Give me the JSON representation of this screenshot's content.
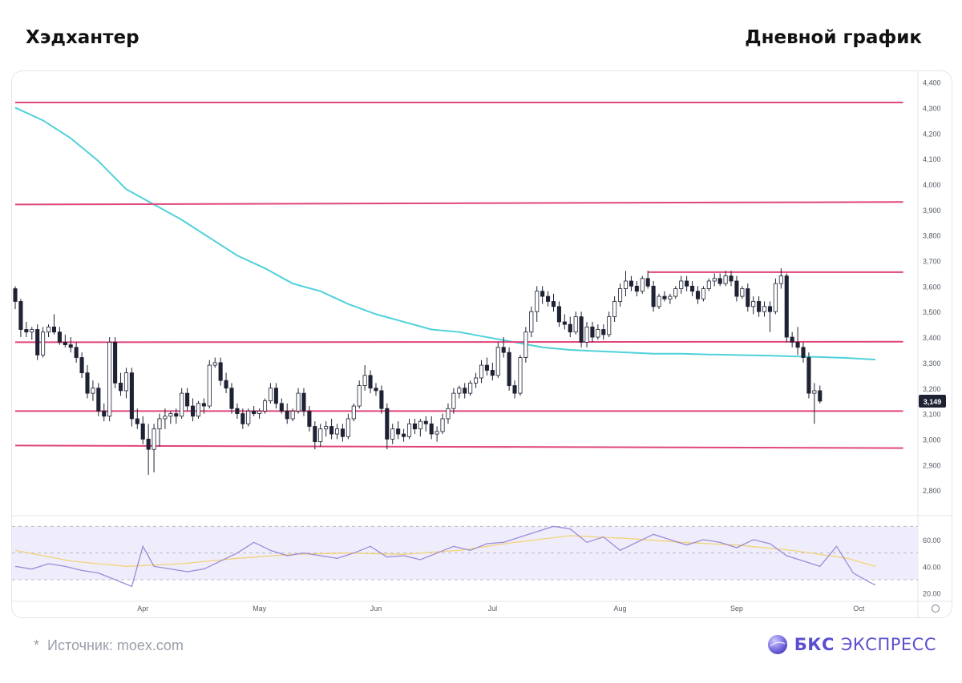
{
  "header": {
    "title_left": "Хэдхантер",
    "title_right": "Дневной график"
  },
  "footer": {
    "source_mark": "*",
    "source_text": "Источник: moex.com",
    "brand_bold": "БКС",
    "brand_thin": "ЭКСПРЕСС"
  },
  "colors": {
    "up_candle": "#ffffff",
    "down_candle": "#1e2233",
    "level_line": "#e0457b",
    "ma_line": "#4fd1d9",
    "rsi_line": "#9b8bd8",
    "rsi_ma_line": "#f2d27a",
    "rsi_band": "#efedfb",
    "brand": "#5a4fcf"
  },
  "chart_data": [
    {
      "type": "candlestick",
      "ylim": [
        2700,
        4430
      ],
      "ytick_labels": [
        "2,800",
        "2,900",
        "3,000",
        "3,100",
        "3,200",
        "3,300",
        "3,400",
        "3,500",
        "3,600",
        "3,700",
        "3,800",
        "3,900",
        "4,000",
        "4,100",
        "4,200",
        "4,300",
        "4,400"
      ],
      "yticks": [
        2800,
        2900,
        3000,
        3100,
        3200,
        3300,
        3400,
        3500,
        3600,
        3700,
        3800,
        3900,
        4000,
        4100,
        4200,
        4300,
        4400
      ],
      "xtick_labels": [
        "Apr",
        "May",
        "Jun",
        "Jul",
        "Aug",
        "Sep",
        "Oct"
      ],
      "xtick_positions": [
        23,
        44,
        65,
        86,
        109,
        130,
        152
      ],
      "x_domain": [
        0,
        155
      ],
      "last_price_label": "3,149",
      "last_price": 3149,
      "levels": [
        {
          "from": 0,
          "to": 160,
          "y1": 4320,
          "y2": 4320
        },
        {
          "from": 0,
          "to": 160,
          "y1": 3920,
          "y2": 3930
        },
        {
          "from": 0,
          "to": 160,
          "y1": 3380,
          "y2": 3382
        },
        {
          "from": 0,
          "to": 160,
          "y1": 3110,
          "y2": 3110
        },
        {
          "from": 0,
          "to": 160,
          "y1": 2975,
          "y2": 2965
        },
        {
          "from": 114,
          "to": 160,
          "y1": 3655,
          "y2": 3655
        }
      ],
      "candles": [
        [
          3590,
          3600,
          3510,
          3540
        ],
        [
          3540,
          3550,
          3400,
          3430
        ],
        [
          3430,
          3460,
          3400,
          3420
        ],
        [
          3420,
          3440,
          3390,
          3430
        ],
        [
          3430,
          3450,
          3310,
          3330
        ],
        [
          3330,
          3440,
          3320,
          3420
        ],
        [
          3420,
          3450,
          3400,
          3440
        ],
        [
          3440,
          3490,
          3410,
          3420
        ],
        [
          3420,
          3440,
          3370,
          3380
        ],
        [
          3380,
          3410,
          3360,
          3370
        ],
        [
          3370,
          3400,
          3340,
          3360
        ],
        [
          3360,
          3380,
          3300,
          3320
        ],
        [
          3320,
          3340,
          3240,
          3260
        ],
        [
          3260,
          3290,
          3160,
          3180
        ],
        [
          3180,
          3230,
          3150,
          3200
        ],
        [
          3200,
          3220,
          3090,
          3110
        ],
        [
          3110,
          3140,
          3070,
          3090
        ],
        [
          3090,
          3400,
          3070,
          3380
        ],
        [
          3380,
          3400,
          3200,
          3220
        ],
        [
          3220,
          3260,
          3170,
          3190
        ],
        [
          3190,
          3280,
          3160,
          3260
        ],
        [
          3260,
          3280,
          3050,
          3080
        ],
        [
          3080,
          3120,
          3040,
          3060
        ],
        [
          3060,
          3090,
          2980,
          3000
        ],
        [
          3000,
          3060,
          2860,
          2960
        ],
        [
          2960,
          3060,
          2870,
          3040
        ],
        [
          3040,
          3100,
          2970,
          3080
        ],
        [
          3080,
          3120,
          3040,
          3090
        ],
        [
          3090,
          3110,
          3060,
          3100
        ],
        [
          3100,
          3120,
          3060,
          3090
        ],
        [
          3090,
          3200,
          3080,
          3180
        ],
        [
          3180,
          3200,
          3110,
          3130
        ],
        [
          3130,
          3160,
          3070,
          3090
        ],
        [
          3090,
          3150,
          3080,
          3140
        ],
        [
          3140,
          3160,
          3100,
          3130
        ],
        [
          3130,
          3310,
          3120,
          3290
        ],
        [
          3290,
          3320,
          3280,
          3300
        ],
        [
          3300,
          3320,
          3210,
          3230
        ],
        [
          3230,
          3260,
          3180,
          3200
        ],
        [
          3200,
          3220,
          3100,
          3120
        ],
        [
          3120,
          3140,
          3080,
          3100
        ],
        [
          3100,
          3120,
          3040,
          3060
        ],
        [
          3060,
          3120,
          3050,
          3110
        ],
        [
          3110,
          3130,
          3090,
          3100
        ],
        [
          3100,
          3120,
          3080,
          3110
        ],
        [
          3110,
          3160,
          3100,
          3150
        ],
        [
          3150,
          3220,
          3140,
          3200
        ],
        [
          3200,
          3220,
          3120,
          3140
        ],
        [
          3140,
          3160,
          3100,
          3110
        ],
        [
          3110,
          3140,
          3060,
          3080
        ],
        [
          3080,
          3120,
          3070,
          3110
        ],
        [
          3110,
          3200,
          3100,
          3180
        ],
        [
          3180,
          3200,
          3090,
          3110
        ],
        [
          3110,
          3130,
          3030,
          3050
        ],
        [
          3050,
          3070,
          2960,
          2990
        ],
        [
          2990,
          3060,
          2970,
          3040
        ],
        [
          3040,
          3070,
          3010,
          3050
        ],
        [
          3050,
          3080,
          3000,
          3020
        ],
        [
          3020,
          3060,
          3000,
          3040
        ],
        [
          3040,
          3060,
          2990,
          3010
        ],
        [
          3010,
          3100,
          3000,
          3080
        ],
        [
          3080,
          3140,
          3070,
          3130
        ],
        [
          3130,
          3230,
          3120,
          3210
        ],
        [
          3210,
          3290,
          3190,
          3250
        ],
        [
          3250,
          3270,
          3180,
          3200
        ],
        [
          3200,
          3220,
          3170,
          3190
        ],
        [
          3190,
          3210,
          3100,
          3120
        ],
        [
          3120,
          3140,
          2960,
          3000
        ],
        [
          3000,
          3060,
          2980,
          3040
        ],
        [
          3040,
          3070,
          3000,
          3020
        ],
        [
          3020,
          3040,
          2990,
          3010
        ],
        [
          3010,
          3080,
          3000,
          3060
        ],
        [
          3060,
          3080,
          3020,
          3040
        ],
        [
          3040,
          3080,
          3010,
          3070
        ],
        [
          3070,
          3090,
          3030,
          3060
        ],
        [
          3060,
          3090,
          3000,
          3020
        ],
        [
          3020,
          3050,
          2990,
          3030
        ],
        [
          3030,
          3100,
          3020,
          3080
        ],
        [
          3080,
          3140,
          3060,
          3120
        ],
        [
          3120,
          3200,
          3100,
          3180
        ],
        [
          3180,
          3210,
          3160,
          3200
        ],
        [
          3200,
          3220,
          3160,
          3180
        ],
        [
          3180,
          3230,
          3170,
          3220
        ],
        [
          3220,
          3260,
          3200,
          3240
        ],
        [
          3240,
          3310,
          3220,
          3290
        ],
        [
          3290,
          3320,
          3250,
          3270
        ],
        [
          3270,
          3300,
          3230,
          3250
        ],
        [
          3250,
          3380,
          3240,
          3360
        ],
        [
          3360,
          3400,
          3320,
          3340
        ],
        [
          3340,
          3360,
          3190,
          3210
        ],
        [
          3210,
          3230,
          3160,
          3180
        ],
        [
          3180,
          3330,
          3170,
          3320
        ],
        [
          3320,
          3440,
          3300,
          3420
        ],
        [
          3420,
          3520,
          3400,
          3500
        ],
        [
          3500,
          3600,
          3460,
          3580
        ],
        [
          3580,
          3600,
          3530,
          3560
        ],
        [
          3560,
          3580,
          3520,
          3540
        ],
        [
          3540,
          3570,
          3500,
          3520
        ],
        [
          3520,
          3540,
          3440,
          3460
        ],
        [
          3460,
          3490,
          3430,
          3450
        ],
        [
          3450,
          3480,
          3400,
          3420
        ],
        [
          3420,
          3500,
          3410,
          3480
        ],
        [
          3480,
          3500,
          3360,
          3380
        ],
        [
          3380,
          3460,
          3360,
          3440
        ],
        [
          3440,
          3460,
          3380,
          3400
        ],
        [
          3400,
          3450,
          3390,
          3430
        ],
        [
          3430,
          3450,
          3390,
          3410
        ],
        [
          3410,
          3500,
          3400,
          3480
        ],
        [
          3480,
          3560,
          3460,
          3540
        ],
        [
          3540,
          3610,
          3520,
          3590
        ],
        [
          3590,
          3660,
          3560,
          3620
        ],
        [
          3620,
          3640,
          3580,
          3600
        ],
        [
          3600,
          3620,
          3560,
          3580
        ],
        [
          3580,
          3640,
          3570,
          3630
        ],
        [
          3630,
          3660,
          3590,
          3600
        ],
        [
          3600,
          3620,
          3500,
          3520
        ],
        [
          3520,
          3570,
          3510,
          3560
        ],
        [
          3560,
          3580,
          3540,
          3550
        ],
        [
          3550,
          3570,
          3530,
          3560
        ],
        [
          3560,
          3600,
          3550,
          3590
        ],
        [
          3590,
          3640,
          3570,
          3620
        ],
        [
          3620,
          3640,
          3580,
          3600
        ],
        [
          3600,
          3620,
          3560,
          3580
        ],
        [
          3580,
          3600,
          3530,
          3550
        ],
        [
          3550,
          3600,
          3540,
          3590
        ],
        [
          3590,
          3630,
          3580,
          3620
        ],
        [
          3620,
          3650,
          3600,
          3630
        ],
        [
          3630,
          3650,
          3600,
          3610
        ],
        [
          3610,
          3660,
          3600,
          3640
        ],
        [
          3640,
          3660,
          3600,
          3620
        ],
        [
          3620,
          3640,
          3540,
          3560
        ],
        [
          3560,
          3600,
          3550,
          3590
        ],
        [
          3590,
          3610,
          3500,
          3520
        ],
        [
          3520,
          3560,
          3490,
          3540
        ],
        [
          3540,
          3560,
          3480,
          3500
        ],
        [
          3500,
          3540,
          3480,
          3520
        ],
        [
          3520,
          3540,
          3420,
          3500
        ],
        [
          3500,
          3630,
          3490,
          3610
        ],
        [
          3610,
          3670,
          3590,
          3640
        ],
        [
          3640,
          3650,
          3380,
          3400
        ],
        [
          3400,
          3420,
          3360,
          3380
        ],
        [
          3380,
          3440,
          3330,
          3360
        ],
        [
          3360,
          3380,
          3300,
          3320
        ],
        [
          3320,
          3340,
          3160,
          3180
        ],
        [
          3180,
          3220,
          3060,
          3190
        ],
        [
          3190,
          3210,
          3140,
          3149
        ]
      ],
      "ma200": [
        [
          0,
          4300
        ],
        [
          5,
          4250
        ],
        [
          10,
          4180
        ],
        [
          15,
          4090
        ],
        [
          20,
          3980
        ],
        [
          25,
          3920
        ],
        [
          30,
          3860
        ],
        [
          35,
          3790
        ],
        [
          40,
          3720
        ],
        [
          45,
          3670
        ],
        [
          50,
          3610
        ],
        [
          55,
          3580
        ],
        [
          60,
          3530
        ],
        [
          65,
          3490
        ],
        [
          70,
          3460
        ],
        [
          75,
          3430
        ],
        [
          80,
          3420
        ],
        [
          85,
          3400
        ],
        [
          90,
          3380
        ],
        [
          95,
          3360
        ],
        [
          100,
          3350
        ],
        [
          105,
          3345
        ],
        [
          110,
          3340
        ],
        [
          115,
          3335
        ],
        [
          120,
          3335
        ],
        [
          125,
          3332
        ],
        [
          130,
          3330
        ],
        [
          135,
          3328
        ],
        [
          140,
          3325
        ],
        [
          145,
          3322
        ],
        [
          150,
          3318
        ],
        [
          155,
          3312
        ]
      ]
    },
    {
      "type": "line",
      "name": "RSI",
      "ylim": [
        15,
        75
      ],
      "yticks": [
        20,
        40,
        60
      ],
      "ytick_labels": [
        "20.00",
        "40.00",
        "60.00"
      ],
      "band": [
        30,
        70
      ],
      "midline": 50,
      "rsi": [
        [
          0,
          40
        ],
        [
          3,
          38
        ],
        [
          6,
          42
        ],
        [
          9,
          40
        ],
        [
          12,
          37
        ],
        [
          15,
          35
        ],
        [
          18,
          30
        ],
        [
          21,
          25
        ],
        [
          23,
          55
        ],
        [
          25,
          40
        ],
        [
          28,
          38
        ],
        [
          31,
          36
        ],
        [
          34,
          38
        ],
        [
          37,
          44
        ],
        [
          40,
          50
        ],
        [
          43,
          58
        ],
        [
          46,
          52
        ],
        [
          49,
          48
        ],
        [
          52,
          50
        ],
        [
          55,
          48
        ],
        [
          58,
          46
        ],
        [
          61,
          50
        ],
        [
          64,
          55
        ],
        [
          67,
          47
        ],
        [
          70,
          48
        ],
        [
          73,
          45
        ],
        [
          76,
          50
        ],
        [
          79,
          55
        ],
        [
          82,
          52
        ],
        [
          85,
          57
        ],
        [
          88,
          58
        ],
        [
          91,
          62
        ],
        [
          94,
          66
        ],
        [
          97,
          70
        ],
        [
          100,
          68
        ],
        [
          103,
          58
        ],
        [
          106,
          62
        ],
        [
          109,
          52
        ],
        [
          112,
          58
        ],
        [
          115,
          64
        ],
        [
          118,
          60
        ],
        [
          121,
          56
        ],
        [
          124,
          60
        ],
        [
          127,
          58
        ],
        [
          130,
          54
        ],
        [
          133,
          60
        ],
        [
          136,
          57
        ],
        [
          139,
          48
        ],
        [
          142,
          44
        ],
        [
          145,
          40
        ],
        [
          148,
          55
        ],
        [
          151,
          35
        ],
        [
          154,
          28
        ],
        [
          155,
          26
        ]
      ],
      "rsi_ma": [
        [
          0,
          52
        ],
        [
          10,
          44
        ],
        [
          20,
          40
        ],
        [
          30,
          42
        ],
        [
          40,
          46
        ],
        [
          50,
          49
        ],
        [
          60,
          50
        ],
        [
          70,
          49
        ],
        [
          80,
          52
        ],
        [
          90,
          58
        ],
        [
          100,
          63
        ],
        [
          110,
          61
        ],
        [
          120,
          58
        ],
        [
          130,
          56
        ],
        [
          140,
          52
        ],
        [
          150,
          46
        ],
        [
          155,
          40
        ]
      ]
    }
  ]
}
